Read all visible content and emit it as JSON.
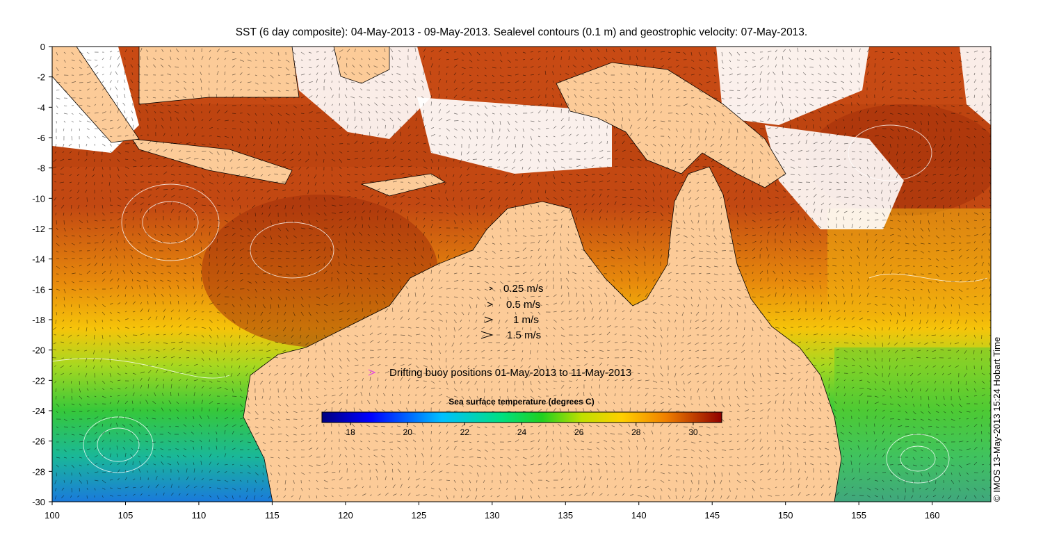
{
  "title": "SST (6 day composite): 04-May-2013 - 09-May-2013. Sealevel contours (0.1 m) and geostrophic velocity: 07-May-2013.",
  "credit": "© IMOS 13-May-2013 15:24 Hobart Time",
  "x_axis": {
    "range": [
      100,
      164
    ],
    "ticks": [
      "100",
      "105",
      "110",
      "115",
      "120",
      "125",
      "130",
      "135",
      "140",
      "145",
      "150",
      "155",
      "160"
    ]
  },
  "y_axis": {
    "range": [
      -30,
      0
    ],
    "ticks": [
      "0",
      "-2",
      "-4",
      "-6",
      "-8",
      "-10",
      "-12",
      "-14",
      "-16",
      "-18",
      "-20",
      "-22",
      "-24",
      "-26",
      "-28",
      "-30"
    ]
  },
  "velocity_legend": [
    {
      "label": "0.25 m/s",
      "speed": 0.25
    },
    {
      "label": "0.5 m/s",
      "speed": 0.5
    },
    {
      "label": "1 m/s",
      "speed": 1
    },
    {
      "label": "1.5 m/s",
      "speed": 1.5
    }
  ],
  "buoy_legend": {
    "label": "Drifting buoy positions 01-May-2013 to 11-May-2013",
    "color": "#e040e0"
  },
  "colorbar": {
    "title": "Sea surface temperature (degrees C)",
    "range": [
      17,
      31
    ],
    "ticks": [
      "18",
      "20",
      "22",
      "24",
      "26",
      "28",
      "30"
    ],
    "colormap": "jet"
  },
  "colors": {
    "land": "#fccb98",
    "cloud": "#ffffff",
    "contour": "#ffffff",
    "arrow": "#000000"
  }
}
